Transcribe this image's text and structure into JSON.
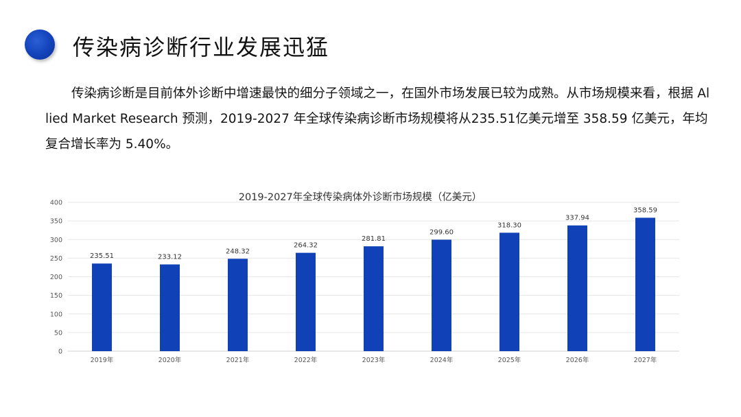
{
  "header": {
    "title": "传染病诊断行业发展迅猛"
  },
  "paragraph": {
    "text": "传染病诊断是目前体外诊断中增速最快的细分子领域之一，在国外市场发展已较为成熟。从市场规模来看，根据 Allied Market Research 预测，2019-2027 年全球传染病诊断市场规模将从235.51亿美元增至 358.59 亿美元，年均复合增长率为 5.40%。"
  },
  "colors": {
    "bar": "#1141b6",
    "accent": "#1241b8"
  },
  "chart_data": {
    "type": "bar",
    "title": "2019-2027年全球传染病体外诊断市场规模（亿美元）",
    "xlabel": "",
    "ylabel": "",
    "categories": [
      "2019年",
      "2020年",
      "2021年",
      "2022年",
      "2023年",
      "2024年",
      "2025年",
      "2026年",
      "2027年"
    ],
    "values": [
      235.51,
      233.12,
      248.32,
      264.32,
      281.81,
      299.6,
      318.3,
      337.94,
      358.59
    ],
    "value_labels": [
      "235.51",
      "233.12",
      "248.32",
      "264.32",
      "281.81",
      "299.60",
      "318.30",
      "337.94",
      "358.59"
    ],
    "ylim": [
      0,
      400
    ],
    "yticks": [
      0,
      50,
      100,
      150,
      200,
      250,
      300,
      350,
      400
    ],
    "grid": true,
    "legend": "none"
  }
}
